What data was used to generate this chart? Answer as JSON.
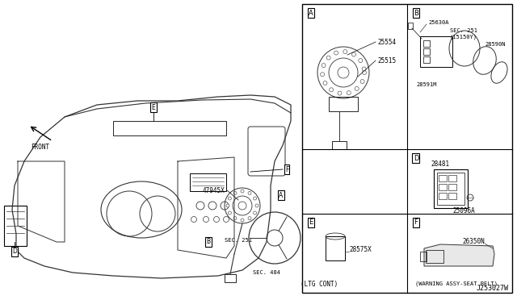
{
  "bg_color": "#f0f0f0",
  "line_color": "#333333",
  "box_color": "#000000",
  "text_color": "#000000",
  "diagram_title": "J253027W",
  "left_labels": {
    "FRONT": "FRONT",
    "E_label": "E",
    "F_label": "F",
    "B_label": "B",
    "D_label": "D",
    "A_label": "A",
    "part_47945X": "47945X",
    "sec_251": "SEC. 251",
    "sec_484": "SEC. 484"
  },
  "right_panels": {
    "A": {
      "label": "A",
      "parts": [
        "25554",
        "25515"
      ],
      "caption": ""
    },
    "B": {
      "label": "B",
      "parts": [
        "25630A",
        "SEC. 251\n(15150Y)",
        "28590N",
        "28591M"
      ],
      "caption": ""
    },
    "D": {
      "label": "D",
      "parts": [
        "28481",
        "25096A"
      ],
      "caption": ""
    },
    "E": {
      "label": "E",
      "parts": [
        "28575X"
      ],
      "caption": "(LTG CONT)"
    },
    "F": {
      "label": "F",
      "parts": [
        "26350N"
      ],
      "caption": "(WARNING ASSY-SEAT BELT)"
    }
  }
}
